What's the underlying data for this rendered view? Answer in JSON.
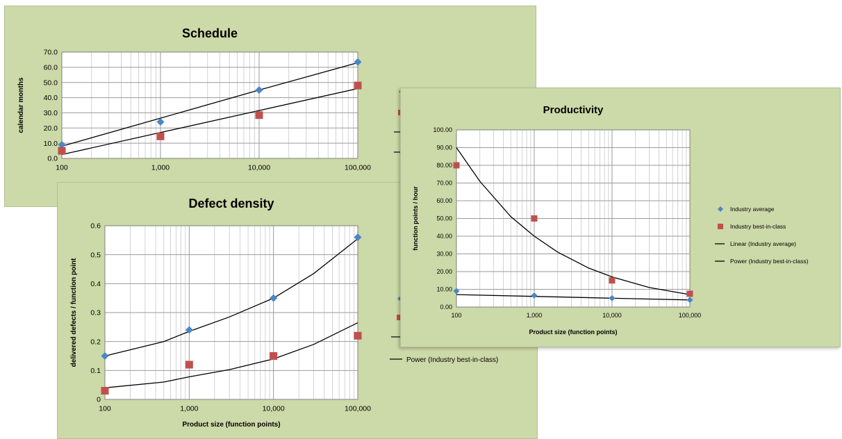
{
  "colors": {
    "panel_bg": "#ccd9a8",
    "plot_bg": "#ffffff",
    "grid": "#c8c8c8",
    "industry_average": "#4a86c8",
    "industry_best": "#c0504d",
    "trend": "#000000"
  },
  "legend": {
    "items": [
      {
        "label": "Industry average",
        "marker": "diamond",
        "color": "#4a86c8"
      },
      {
        "label": "Industry best-in-class",
        "marker": "square",
        "color": "#c0504d"
      },
      {
        "label": "Linear (Industry average)",
        "marker": "line",
        "color": "#000000"
      },
      {
        "label": "Power (Industry best-in-class)",
        "marker": "line",
        "color": "#000000"
      }
    ],
    "defect_visible_label": "Power (Industry best-in-class)"
  },
  "chart_data": [
    {
      "id": "schedule",
      "type": "scatter",
      "title": "Schedule",
      "xlabel": "",
      "ylabel": "calendar months",
      "xscale": "log",
      "xlim": [
        100,
        100000
      ],
      "ylim": [
        0,
        70
      ],
      "xticks": [
        "100",
        "1,000",
        "10,000",
        "100,000"
      ],
      "yticks": [
        "0.0",
        "10.0",
        "20.0",
        "30.0",
        "40.0",
        "50.0",
        "60.0",
        "70.0"
      ],
      "grid": true,
      "series": [
        {
          "name": "Industry average",
          "marker": "diamond",
          "x": [
            100,
            1000,
            10000,
            100000
          ],
          "y": [
            9,
            24,
            45,
            63.5
          ]
        },
        {
          "name": "Industry best-in-class",
          "marker": "square",
          "x": [
            100,
            1000,
            10000,
            100000
          ],
          "y": [
            5,
            14.5,
            28.5,
            48
          ]
        }
      ],
      "trendlines": [
        {
          "name": "Linear (Industry average)",
          "x": [
            100,
            1000,
            10000,
            100000
          ],
          "y": [
            8,
            26.5,
            45,
            63
          ]
        },
        {
          "name": "Power (Industry best-in-class)",
          "x": [
            100,
            1000,
            10000,
            100000
          ],
          "y": [
            2.5,
            17,
            31.5,
            46
          ]
        }
      ]
    },
    {
      "id": "defect",
      "type": "scatter",
      "title": "Defect density",
      "xlabel": "Product size (function points)",
      "ylabel": "delivered defects / function point",
      "xscale": "log",
      "xlim": [
        100,
        100000
      ],
      "ylim": [
        0,
        0.6
      ],
      "xticks": [
        "100",
        "1,000",
        "10,000",
        "100,000"
      ],
      "yticks": [
        "0",
        "0.1",
        "0.2",
        "0.3",
        "0.4",
        "0.5",
        "0.6"
      ],
      "grid": true,
      "series": [
        {
          "name": "Industry average",
          "marker": "diamond",
          "x": [
            100,
            1000,
            10000,
            100000
          ],
          "y": [
            0.15,
            0.24,
            0.35,
            0.56
          ]
        },
        {
          "name": "Industry best-in-class",
          "marker": "square",
          "x": [
            100,
            1000,
            10000,
            100000
          ],
          "y": [
            0.03,
            0.12,
            0.15,
            0.22
          ]
        }
      ],
      "trendlines": [
        {
          "name": "Linear (Industry average)",
          "x": [
            100,
            500,
            1000,
            3000,
            10000,
            30000,
            100000
          ],
          "y": [
            0.15,
            0.2,
            0.235,
            0.285,
            0.35,
            0.435,
            0.555
          ]
        },
        {
          "name": "Power (Industry best-in-class)",
          "x": [
            100,
            500,
            1000,
            3000,
            10000,
            30000,
            100000
          ],
          "y": [
            0.04,
            0.06,
            0.078,
            0.103,
            0.14,
            0.19,
            0.265
          ]
        }
      ]
    },
    {
      "id": "productivity",
      "type": "scatter",
      "title": "Productivity",
      "xlabel": "Product size (function points)",
      "ylabel": "function points / hour",
      "xscale": "log",
      "xlim": [
        100,
        100000
      ],
      "ylim": [
        0,
        100
      ],
      "xticks": [
        "100",
        "1,000",
        "10,000",
        "100,000"
      ],
      "yticks": [
        "0.00",
        "10.00",
        "20.00",
        "30.00",
        "40.00",
        "50.00",
        "60.00",
        "70.00",
        "80.00",
        "90.00",
        "100.00"
      ],
      "grid": true,
      "legend": "right",
      "series": [
        {
          "name": "Industry average",
          "marker": "diamond",
          "x": [
            100,
            1000,
            10000,
            100000
          ],
          "y": [
            9,
            6.5,
            5,
            4
          ]
        },
        {
          "name": "Industry best-in-class",
          "marker": "square",
          "x": [
            100,
            1000,
            10000,
            100000
          ],
          "y": [
            80,
            50,
            15,
            7.5
          ]
        }
      ],
      "trendlines": [
        {
          "name": "Linear (Industry average)",
          "x": [
            100,
            1000,
            10000,
            100000
          ],
          "y": [
            7,
            6,
            5,
            4
          ]
        },
        {
          "name": "Power (Industry best-in-class)",
          "x": [
            100,
            200,
            500,
            1000,
            2000,
            5000,
            10000,
            30000,
            100000
          ],
          "y": [
            90,
            71,
            51,
            40,
            31,
            22,
            17,
            11,
            7
          ]
        }
      ]
    }
  ]
}
